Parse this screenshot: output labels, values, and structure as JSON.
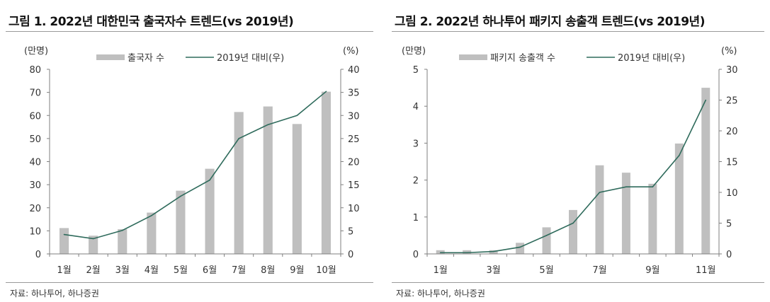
{
  "chart_data": [
    {
      "type": "bar",
      "title": "그림 1. 2022년 대한민국 출국자수 트렌드(vs 2019년)",
      "ylabel_left": "(만명)",
      "ylabel_right": "(%)",
      "categories": [
        "1월",
        "2월",
        "3월",
        "4월",
        "5월",
        "6월",
        "7월",
        "8월",
        "9월",
        "10월"
      ],
      "ylim_left": [
        0,
        80
      ],
      "yticks_left": [
        0,
        10,
        20,
        30,
        40,
        50,
        60,
        70,
        80
      ],
      "ylim_right": [
        0,
        40
      ],
      "yticks_right": [
        0,
        5,
        10,
        15,
        20,
        25,
        30,
        35,
        40
      ],
      "series": [
        {
          "name": "출국자 수",
          "type": "bar",
          "axis": "left",
          "color": "#bfbfbf",
          "values": [
            11.2,
            7.9,
            10.7,
            17.9,
            27.4,
            36.9,
            61.5,
            63.9,
            56.3,
            70.3
          ]
        },
        {
          "name": "2019년 대비(우)",
          "type": "line",
          "axis": "right",
          "color": "#2f6b5c",
          "values": [
            4.2,
            3.3,
            5.1,
            8.3,
            12.5,
            16.0,
            25.0,
            28.0,
            30.0,
            35.2
          ]
        }
      ],
      "legend": "top",
      "grid": false,
      "source": "자료: 하나투어, 하나증권"
    },
    {
      "type": "bar",
      "title": "그림 2. 2022년 하나투어 패키지 송출객 트렌드(vs 2019년)",
      "ylabel_left": "(만명)",
      "ylabel_right": "(%)",
      "categories": [
        "1월",
        "",
        "3월",
        "",
        "5월",
        "",
        "7월",
        "",
        "9월",
        "",
        "11월"
      ],
      "ylim_left": [
        0,
        5
      ],
      "yticks_left": [
        0,
        1,
        2,
        3,
        4,
        5
      ],
      "ylim_right": [
        0,
        30
      ],
      "yticks_right": [
        0,
        5,
        10,
        15,
        20,
        25,
        30
      ],
      "series": [
        {
          "name": "패키지 송출객 수",
          "type": "bar",
          "axis": "left",
          "color": "#bfbfbf",
          "values": [
            0.1,
            0.1,
            0.1,
            0.3,
            0.72,
            1.19,
            2.4,
            2.2,
            1.9,
            2.99,
            4.5
          ]
        },
        {
          "name": "2019년 대비(우)",
          "type": "line",
          "axis": "right",
          "color": "#2f6b5c",
          "values": [
            0.2,
            0.2,
            0.4,
            1.1,
            3.0,
            5.0,
            10.0,
            10.9,
            10.9,
            16.0,
            25.0
          ]
        }
      ],
      "legend": "top",
      "grid": false,
      "source": "자료: 하나투어, 하나증권"
    }
  ]
}
